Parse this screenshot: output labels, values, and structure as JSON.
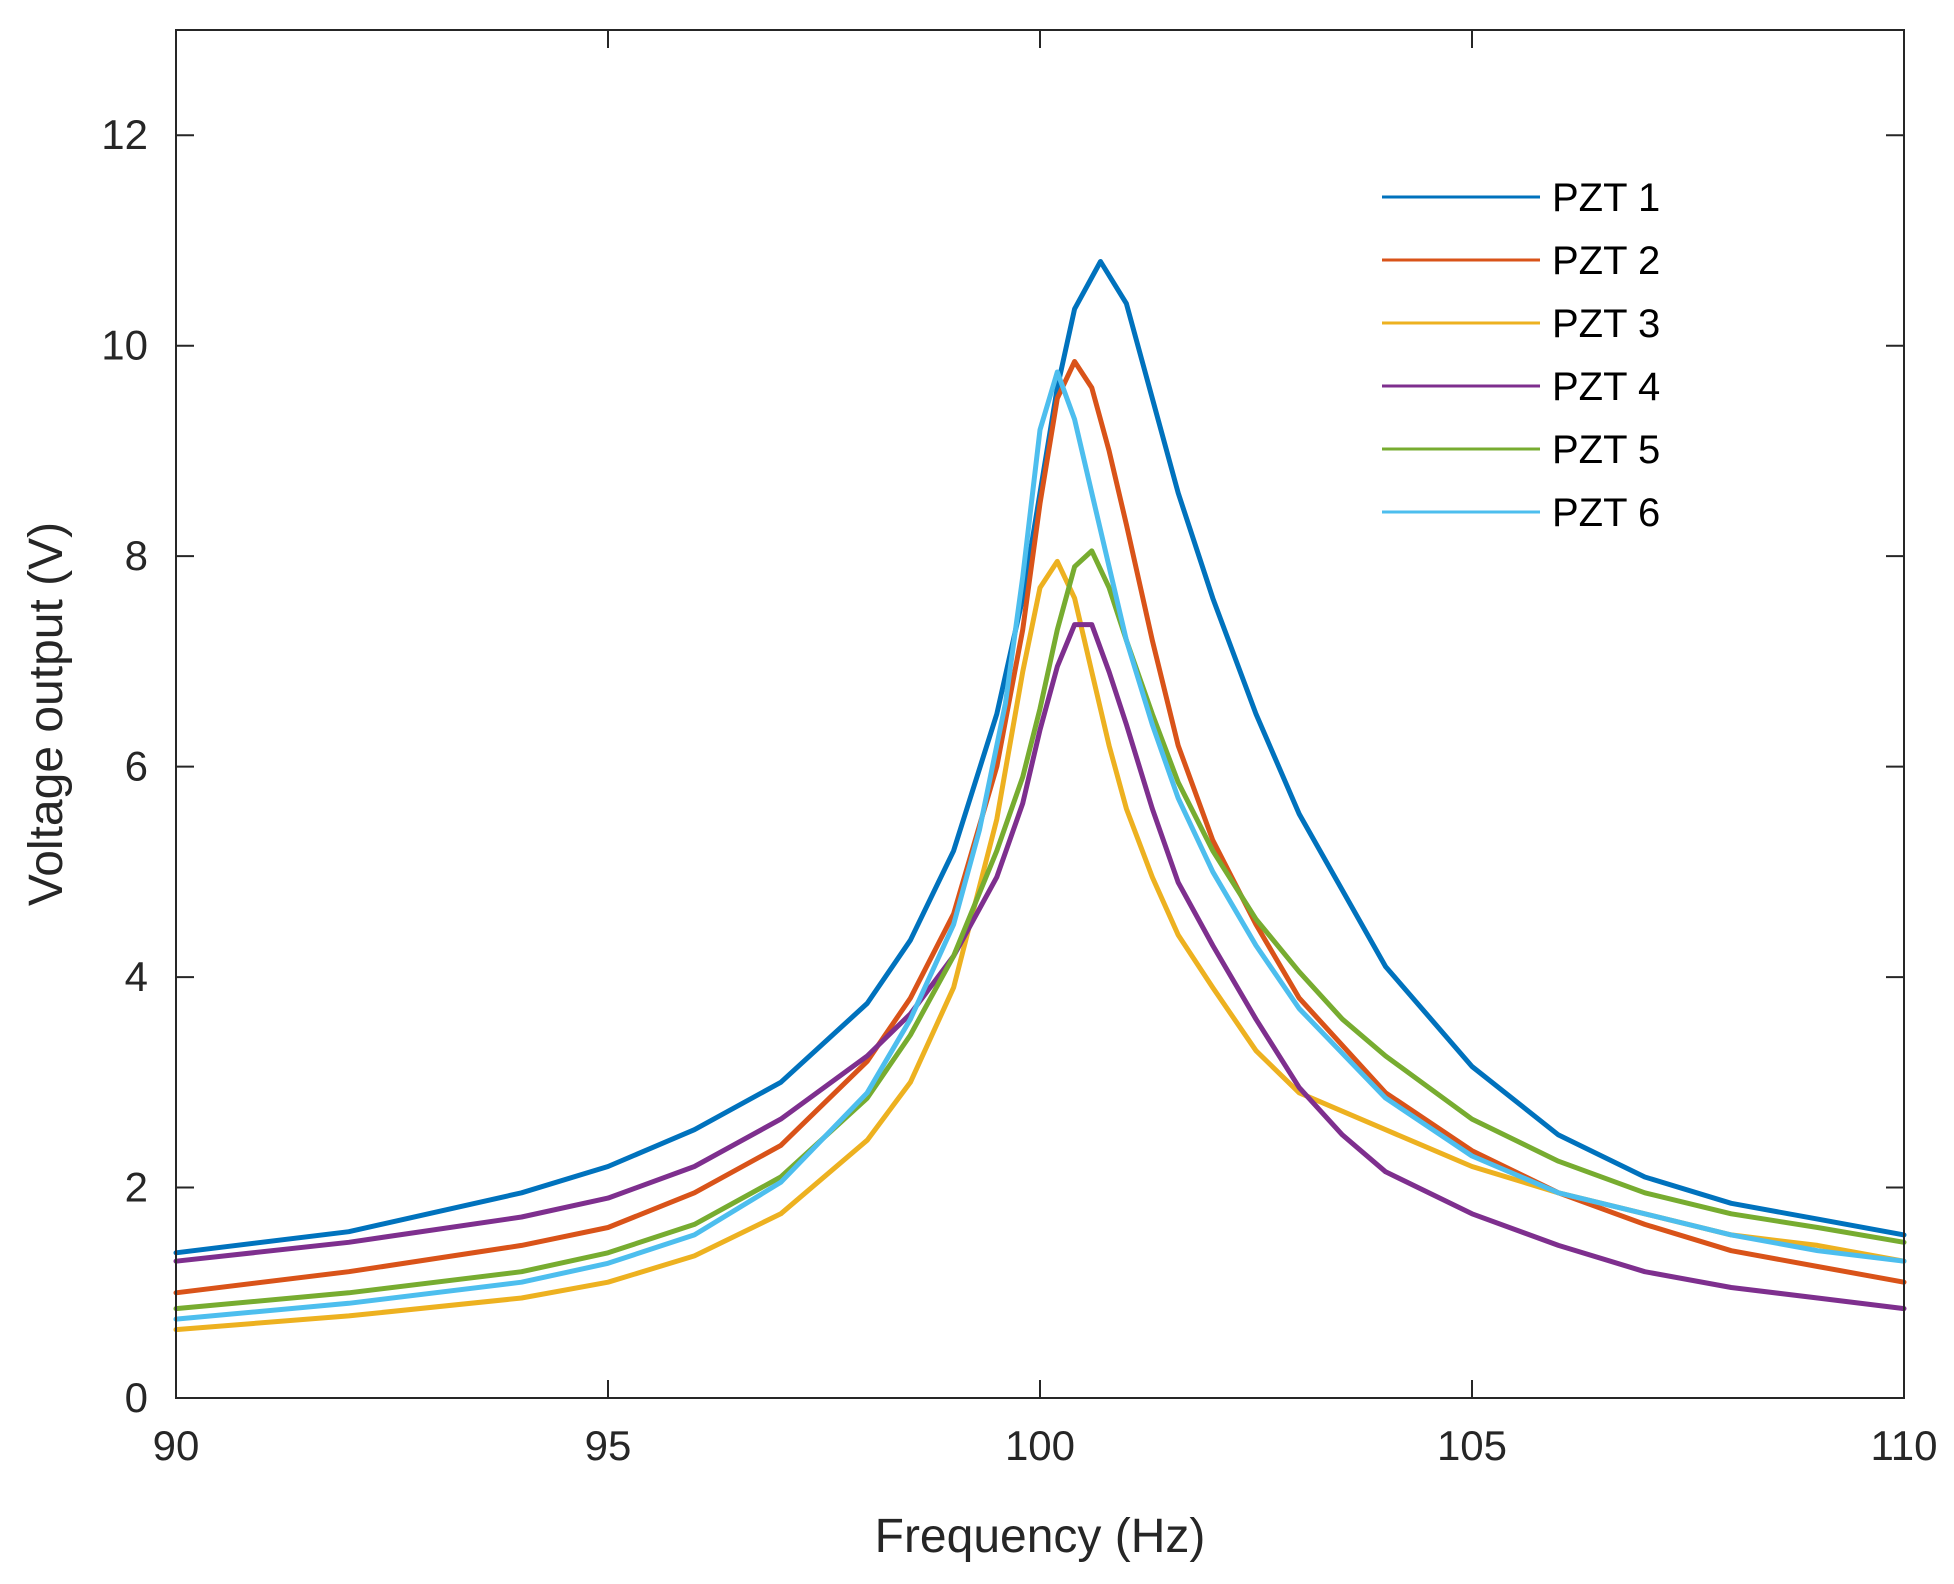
{
  "chart_data": {
    "type": "line",
    "title": "",
    "xlabel": "Frequency (Hz)",
    "ylabel": "Voltage output (V)",
    "xlim": [
      90,
      110
    ],
    "ylim": [
      0,
      13
    ],
    "xticks": [
      90,
      95,
      100,
      105,
      110
    ],
    "xtick_labels": [
      "90",
      "95",
      "100",
      "105",
      "110"
    ],
    "yticks": [
      0,
      2,
      4,
      6,
      8,
      10,
      12
    ],
    "ytick_labels": [
      "0",
      "2",
      "4",
      "6",
      "8",
      "10",
      "12"
    ],
    "grid": false,
    "legend_position": "top-right",
    "series": [
      {
        "name": "PZT 1",
        "color": "#0072BD",
        "x": [
          90,
          92,
          94,
          95,
          96,
          97,
          98,
          98.5,
          99,
          99.5,
          99.8,
          100,
          100.2,
          100.4,
          100.7,
          101,
          101.3,
          101.6,
          102,
          102.5,
          103,
          104,
          105,
          106,
          107,
          108,
          109,
          110
        ],
        "y": [
          1.38,
          1.58,
          1.95,
          2.2,
          2.55,
          3.0,
          3.75,
          4.35,
          5.2,
          6.5,
          7.6,
          8.6,
          9.6,
          10.35,
          10.8,
          10.4,
          9.5,
          8.6,
          7.6,
          6.5,
          5.55,
          4.1,
          3.15,
          2.5,
          2.1,
          1.85,
          1.7,
          1.55
        ]
      },
      {
        "name": "PZT 2",
        "color": "#D95319",
        "x": [
          90,
          92,
          94,
          95,
          96,
          97,
          98,
          98.5,
          99,
          99.5,
          99.8,
          100,
          100.2,
          100.4,
          100.6,
          100.8,
          101,
          101.3,
          101.6,
          102,
          102.5,
          103,
          104,
          105,
          106,
          107,
          108,
          109,
          110
        ],
        "y": [
          1.0,
          1.2,
          1.45,
          1.62,
          1.95,
          2.4,
          3.2,
          3.8,
          4.6,
          6.0,
          7.3,
          8.5,
          9.5,
          9.85,
          9.6,
          9.0,
          8.3,
          7.2,
          6.2,
          5.3,
          4.5,
          3.8,
          2.9,
          2.35,
          1.95,
          1.65,
          1.4,
          1.25,
          1.1
        ]
      },
      {
        "name": "PZT 3",
        "color": "#EDB120",
        "x": [
          90,
          92,
          94,
          95,
          96,
          97,
          98,
          98.5,
          99,
          99.5,
          99.8,
          100,
          100.2,
          100.4,
          100.6,
          100.8,
          101,
          101.3,
          101.6,
          102,
          102.5,
          103,
          104,
          105,
          106,
          107,
          108,
          109,
          110
        ],
        "y": [
          0.65,
          0.78,
          0.95,
          1.1,
          1.35,
          1.75,
          2.45,
          3.0,
          3.9,
          5.5,
          6.9,
          7.7,
          7.95,
          7.6,
          6.9,
          6.2,
          5.6,
          4.95,
          4.4,
          3.9,
          3.3,
          2.9,
          2.55,
          2.2,
          1.95,
          1.75,
          1.55,
          1.45,
          1.3
        ]
      },
      {
        "name": "PZT 4",
        "color": "#7E2F8E",
        "x": [
          90,
          92,
          94,
          95,
          96,
          97,
          98,
          98.5,
          99,
          99.5,
          99.8,
          100,
          100.2,
          100.4,
          100.6,
          100.8,
          101,
          101.3,
          101.6,
          102,
          102.5,
          103,
          103.5,
          104,
          105,
          106,
          107,
          108,
          109,
          110
        ],
        "y": [
          1.3,
          1.48,
          1.72,
          1.9,
          2.2,
          2.65,
          3.25,
          3.65,
          4.2,
          4.95,
          5.65,
          6.35,
          6.95,
          7.35,
          7.35,
          6.9,
          6.4,
          5.6,
          4.9,
          4.3,
          3.6,
          2.95,
          2.5,
          2.15,
          1.75,
          1.45,
          1.2,
          1.05,
          0.95,
          0.85
        ]
      },
      {
        "name": "PZT 5",
        "color": "#77AC30",
        "x": [
          90,
          92,
          94,
          95,
          96,
          97,
          98,
          98.5,
          99,
          99.5,
          99.8,
          100,
          100.2,
          100.4,
          100.6,
          100.8,
          101,
          101.3,
          101.6,
          102,
          102.5,
          103,
          103.5,
          104,
          105,
          106,
          107,
          108,
          109,
          110
        ],
        "y": [
          0.85,
          1.0,
          1.2,
          1.38,
          1.65,
          2.1,
          2.85,
          3.45,
          4.2,
          5.2,
          5.9,
          6.55,
          7.3,
          7.9,
          8.05,
          7.7,
          7.2,
          6.5,
          5.85,
          5.2,
          4.55,
          4.05,
          3.6,
          3.25,
          2.65,
          2.25,
          1.95,
          1.75,
          1.62,
          1.48
        ]
      },
      {
        "name": "PZT 6",
        "color": "#4DBEEE",
        "x": [
          90,
          92,
          94,
          95,
          96,
          97,
          98,
          98.5,
          99,
          99.3,
          99.6,
          99.8,
          100,
          100.2,
          100.4,
          100.6,
          100.8,
          101,
          101.3,
          101.6,
          102,
          102.5,
          103,
          104,
          105,
          106,
          107,
          108,
          109,
          110
        ],
        "y": [
          0.75,
          0.9,
          1.1,
          1.28,
          1.55,
          2.05,
          2.9,
          3.6,
          4.5,
          5.4,
          6.6,
          7.8,
          9.2,
          9.75,
          9.3,
          8.6,
          7.9,
          7.2,
          6.4,
          5.7,
          5.0,
          4.3,
          3.7,
          2.85,
          2.3,
          1.95,
          1.75,
          1.55,
          1.4,
          1.3
        ]
      }
    ]
  }
}
